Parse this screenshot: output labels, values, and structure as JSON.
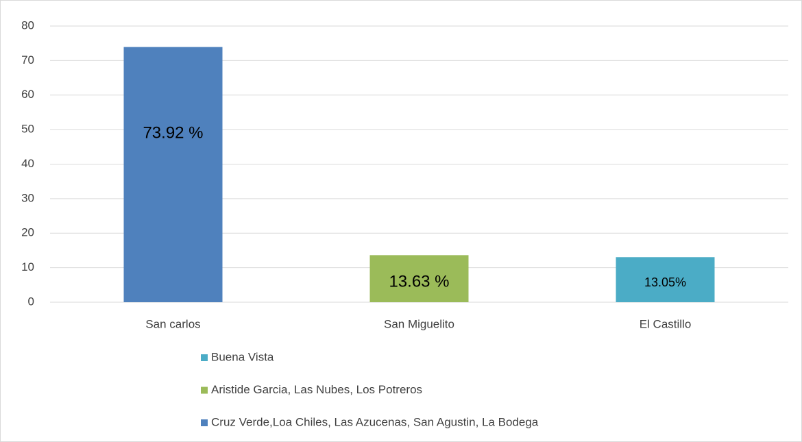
{
  "chart_data": {
    "type": "bar",
    "categories": [
      "San carlos",
      "San Miguelito",
      "El Castillo"
    ],
    "series": [
      {
        "name": "Cruz Verde,Loa Chiles, Las Azucenas, San Agustin, La Bodega",
        "color": "#4f81bd",
        "values": [
          73.92,
          null,
          null
        ],
        "value_labels": [
          "73.92 %",
          null,
          null
        ]
      },
      {
        "name": "Aristide Garcia, Las Nubes, Los Potreros",
        "color": "#9bbb59",
        "values": [
          null,
          13.63,
          null
        ],
        "value_labels": [
          null,
          "13.63 %",
          null
        ]
      },
      {
        "name": "Buena Vista",
        "color": "#4bacc6",
        "values": [
          null,
          null,
          13.05
        ],
        "value_labels": [
          null,
          null,
          "13.05%"
        ]
      }
    ],
    "ylim": [
      0,
      80
    ],
    "yticks": [
      0,
      10,
      20,
      30,
      40,
      50,
      60,
      70,
      80
    ],
    "grid": true
  }
}
